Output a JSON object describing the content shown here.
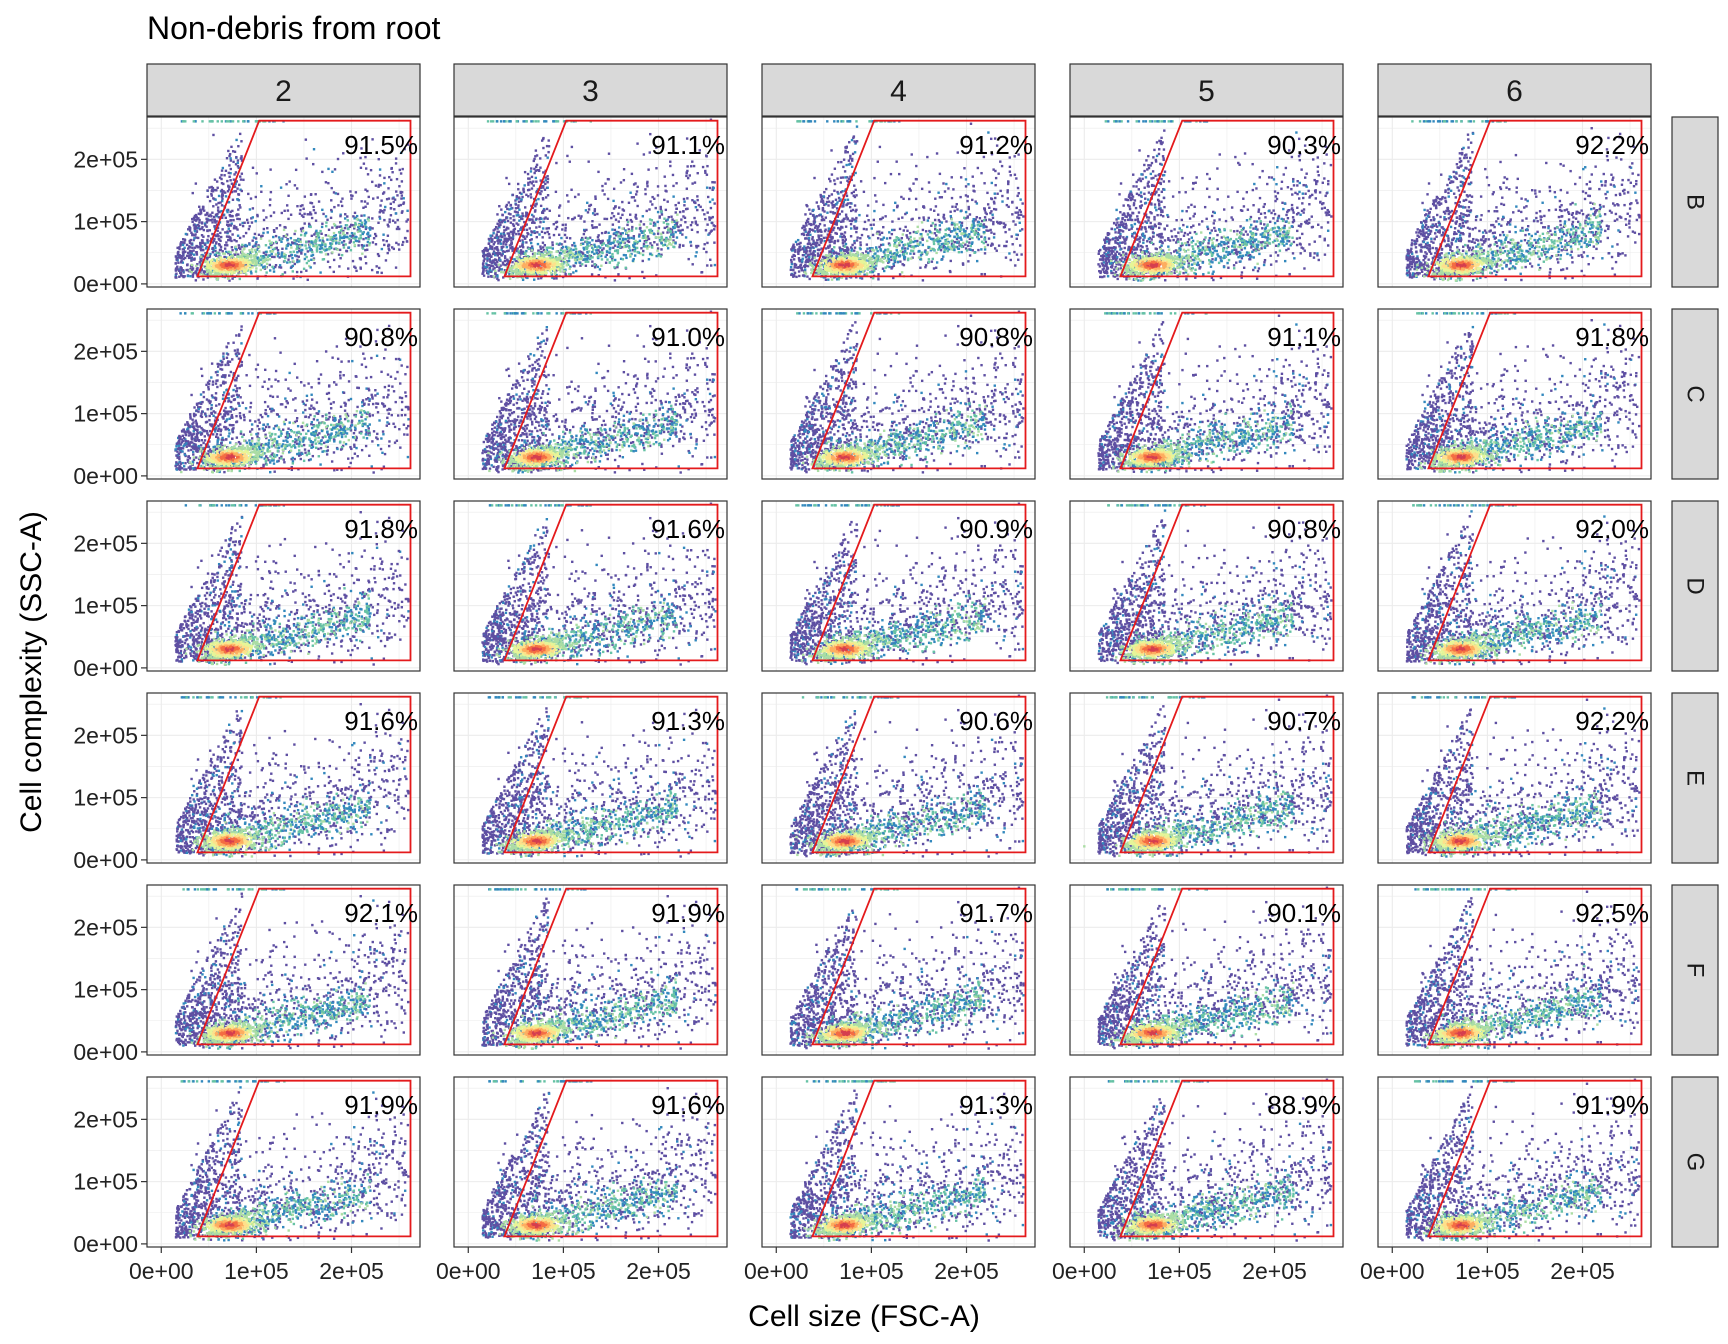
{
  "chart_data": {
    "type": "scatter",
    "title": "Non-debris from root",
    "xlabel": "Cell size (FSC-A)",
    "ylabel": "Cell complexity (SSC-A)",
    "xlim": [
      -15000,
      272000
    ],
    "ylim": [
      -5000,
      268000
    ],
    "x_ticks": [
      0,
      100000,
      200000
    ],
    "x_tick_labels": [
      "0e+00",
      "1e+05",
      "2e+05"
    ],
    "y_ticks": [
      0,
      100000,
      200000
    ],
    "y_tick_labels": [
      "0e+00",
      "1e+05",
      "2e+05"
    ],
    "columns": [
      "2",
      "3",
      "4",
      "5",
      "6"
    ],
    "rows": [
      "B",
      "C",
      "D",
      "E",
      "F",
      "G"
    ],
    "gate_polygon": [
      [
        38000,
        12000
      ],
      [
        103000,
        262000
      ],
      [
        262000,
        262000
      ],
      [
        262000,
        12000
      ]
    ],
    "gate_color": "#e41a1c",
    "density_palette": [
      "#5e4fa2",
      "#3288bd",
      "#66c2a5",
      "#abdda4",
      "#e6f598",
      "#fee08b",
      "#fdae61",
      "#f46d43",
      "#d53e4f"
    ],
    "strip_fill": "#d9d9d9",
    "gridlines": true,
    "gate_percentages": [
      [
        "91.5%",
        "91.1%",
        "91.2%",
        "90.3%",
        "92.2%"
      ],
      [
        "90.8%",
        "91.0%",
        "90.8%",
        "91.1%",
        "91.8%"
      ],
      [
        "91.8%",
        "91.6%",
        "90.9%",
        "90.8%",
        "92.0%"
      ],
      [
        "91.6%",
        "91.3%",
        "90.6%",
        "90.7%",
        "92.2%"
      ],
      [
        "92.1%",
        "91.9%",
        "91.7%",
        "90.1%",
        "92.5%"
      ],
      [
        "91.9%",
        "91.6%",
        "91.3%",
        "88.9%",
        "91.9%"
      ]
    ]
  }
}
